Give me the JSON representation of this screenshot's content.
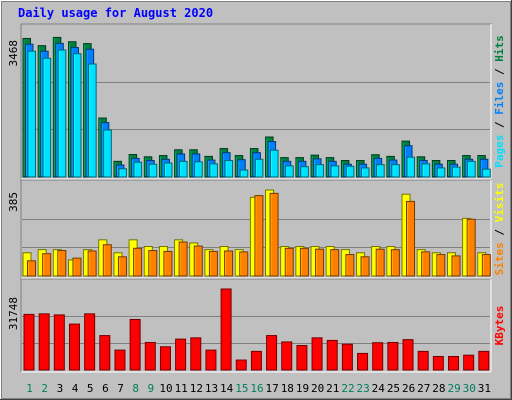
{
  "colors": {
    "background": "#C0C0C0",
    "panel": "#C0C0C0",
    "title": "#0000FF",
    "hits": "#008040",
    "files": "#0080FF",
    "pages": "#00E0FF",
    "visits": "#FF8000",
    "sites": "#FFFF00",
    "kbytes": "#FF0000",
    "day_weekday": "#000000",
    "day_weekend": "#00805C"
  },
  "chart_data": {
    "type": "bar",
    "title": "Daily usage for August 2020",
    "categories": [
      "1",
      "2",
      "3",
      "4",
      "5",
      "6",
      "7",
      "8",
      "9",
      "10",
      "11",
      "12",
      "13",
      "14",
      "15",
      "16",
      "17",
      "18",
      "19",
      "20",
      "21",
      "22",
      "23",
      "24",
      "25",
      "26",
      "27",
      "28",
      "29",
      "30",
      "31"
    ],
    "weekend_days": [
      1,
      2,
      8,
      9,
      15,
      16,
      22,
      23,
      29,
      30
    ],
    "panels": [
      {
        "name": "hits-files-pages",
        "max_label": "3468",
        "ymax": 3468,
        "legend": [
          {
            "text": "Pages",
            "color": "#00E0FF"
          },
          {
            "text": " / ",
            "color": "#000000"
          },
          {
            "text": "Files",
            "color": "#0080FF"
          },
          {
            "text": " / ",
            "color": "#000000"
          },
          {
            "text": "Hits",
            "color": "#008040"
          }
        ],
        "series": [
          {
            "name": "Hits",
            "color": "#008040",
            "values": [
              3360,
              3185,
              3385,
              3280,
              3235,
              1430,
              380,
              545,
              490,
              520,
              660,
              660,
              500,
              690,
              520,
              690,
              970,
              470,
              470,
              530,
              470,
              400,
              400,
              540,
              500,
              870,
              490,
              400,
              400,
              520,
              520
            ]
          },
          {
            "name": "Files",
            "color": "#0080FF",
            "values": [
              3220,
              3050,
              3240,
              3140,
              3100,
              1320,
              290,
              450,
              400,
              430,
              560,
              560,
              410,
              590,
              420,
              590,
              860,
              380,
              380,
              440,
              380,
              310,
              310,
              450,
              410,
              760,
              400,
              310,
              310,
              430,
              430
            ]
          },
          {
            "name": "Pages",
            "color": "#00E0FF",
            "values": [
              3050,
              2880,
              3080,
              2990,
              2740,
              1140,
              200,
              360,
              310,
              340,
              380,
              370,
              320,
              400,
              170,
              430,
              650,
              270,
              250,
              300,
              270,
              260,
              220,
              300,
              300,
              480,
              320,
              220,
              240,
              380,
              190
            ]
          }
        ]
      },
      {
        "name": "visits-sites",
        "max_label": "385",
        "ymax": 385,
        "legend": [
          {
            "text": "Sites",
            "color": "#FF8000"
          },
          {
            "text": " / ",
            "color": "#000000"
          },
          {
            "text": "Visits",
            "color": "#FFFF00"
          }
        ],
        "series": [
          {
            "name": "Visits",
            "color": "#FFFF00",
            "values": [
              104,
              118,
              118,
              72,
              118,
              162,
              104,
              162,
              132,
              132,
              162,
              148,
              118,
              132,
              118,
              352,
              385,
              132,
              132,
              132,
              132,
              118,
              104,
              132,
              132,
              366,
              118,
              104,
              104,
              258,
              104
            ]
          },
          {
            "name": "Sites",
            "color": "#FF8000",
            "values": [
              68,
              100,
              114,
              80,
              112,
              140,
              86,
              124,
              114,
              110,
              152,
              134,
              110,
              112,
              108,
              360,
              370,
              124,
              124,
              120,
              118,
              96,
              86,
              120,
              118,
              334,
              108,
              96,
              90,
              254,
              96
            ]
          }
        ]
      },
      {
        "name": "kbytes",
        "max_label": "31748",
        "ymax": 31748,
        "legend": [
          {
            "text": "KBytes",
            "color": "#FF0000"
          }
        ],
        "series": [
          {
            "name": "KBytes",
            "color": "#FF0000",
            "values": [
              21800,
              22000,
              21600,
              18000,
              22000,
              13500,
              7800,
              19800,
              10800,
              9100,
              12100,
              12600,
              7800,
              31748,
              3900,
              7300,
              13500,
              11000,
              9600,
              12600,
              11600,
              10100,
              6500,
              10700,
              10800,
              11900,
              7300,
              5300,
              5300,
              5800,
              7300
            ]
          }
        ]
      }
    ]
  }
}
